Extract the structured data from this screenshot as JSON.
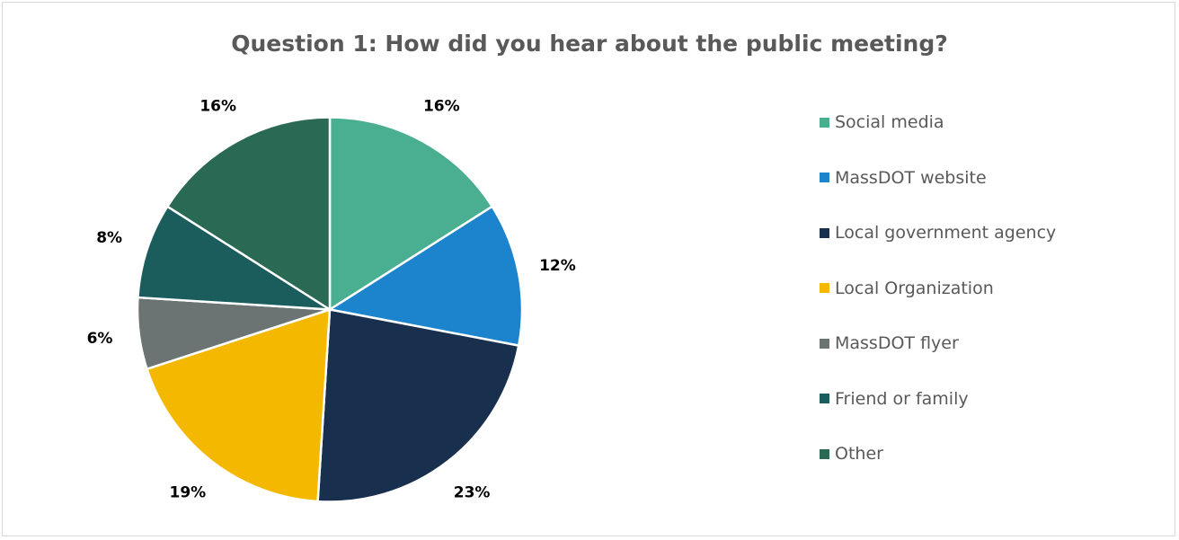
{
  "chart_data": {
    "type": "pie",
    "title": "Question 1: How did you hear about the public meeting?",
    "slices": [
      {
        "label": "Social media",
        "value": 16,
        "display": "16%",
        "color": "#4aaf91"
      },
      {
        "label": "MassDOT website",
        "value": 12,
        "display": "12%",
        "color": "#1c84cc"
      },
      {
        "label": "Local government agency",
        "value": 23,
        "display": "23%",
        "color": "#182f4e"
      },
      {
        "label": "Local Organization",
        "value": 19,
        "display": "19%",
        "color": "#f5b800"
      },
      {
        "label": "MassDOT flyer",
        "value": 6,
        "display": "6%",
        "color": "#6b7373"
      },
      {
        "label": "Friend or family",
        "value": 8,
        "display": "8%",
        "color": "#1b5c5d"
      },
      {
        "label": "Other",
        "value": 16,
        "display": "16%",
        "color": "#2a6a55"
      }
    ],
    "legend_position": "right"
  }
}
